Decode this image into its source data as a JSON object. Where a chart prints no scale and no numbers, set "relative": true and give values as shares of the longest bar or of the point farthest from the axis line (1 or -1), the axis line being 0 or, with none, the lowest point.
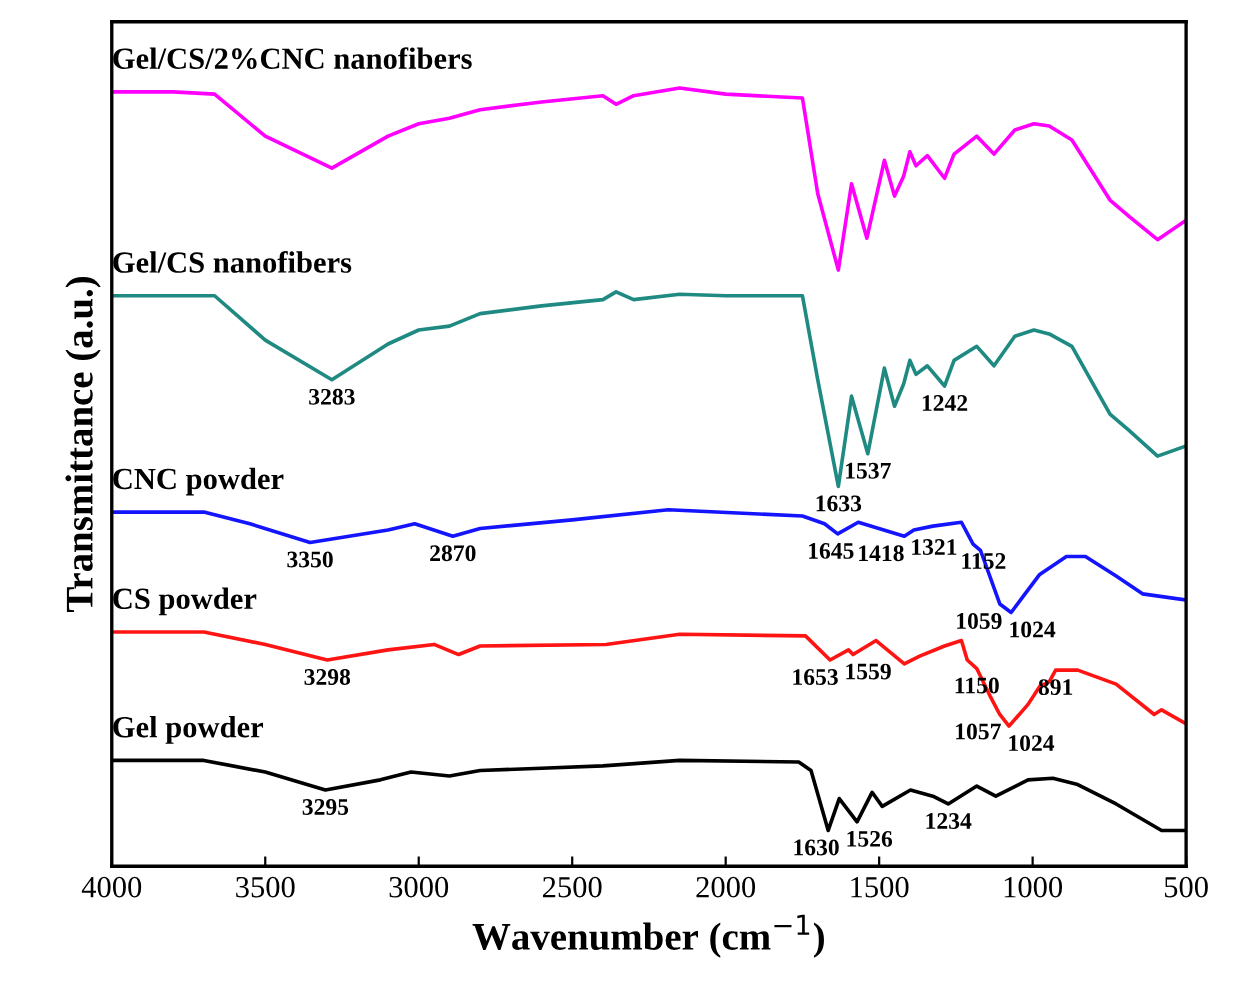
{
  "chart_data": {
    "type": "line",
    "relative": true,
    "xlabel": "Wavenumber (cm$^{−1}$)",
    "ylabel": "Transmittance (a.u.)",
    "xlim": [
      4000,
      500
    ],
    "xticks": [
      4000,
      3500,
      3000,
      2500,
      2000,
      1500,
      1000,
      500
    ],
    "grid": false,
    "legend": false,
    "series": [
      {
        "name": "Gel/CS/2%CNC nanofibers",
        "color": "#ff00ff",
        "x": [
          4000,
          3800,
          3665,
          3500,
          3283,
          3100,
          3000,
          2900,
          2800,
          2600,
          2400,
          2357,
          2300,
          2150,
          2000,
          1750,
          1700,
          1633,
          1590,
          1540,
          1483,
          1450,
          1420,
          1400,
          1380,
          1343,
          1287,
          1256,
          1182,
          1126,
          1058,
          996,
          946,
          872,
          748,
          686,
          593,
          500
        ],
        "values": [
          0.995,
          0.995,
          0.992,
          0.938,
          0.897,
          0.938,
          0.954,
          0.961,
          0.972,
          0.982,
          0.99,
          0.979,
          0.99,
          1.0,
          0.992,
          0.987,
          0.864,
          0.766,
          0.877,
          0.807,
          0.907,
          0.861,
          0.887,
          0.918,
          0.9,
          0.913,
          0.884,
          0.915,
          0.938,
          0.915,
          0.946,
          0.954,
          0.951,
          0.933,
          0.856,
          0.835,
          0.805,
          0.83
        ]
      },
      {
        "name": "Gel/CS nanofibers",
        "color": "#1f8a82",
        "x": [
          4000,
          3800,
          3665,
          3500,
          3283,
          3100,
          3000,
          2900,
          2800,
          2600,
          2400,
          2357,
          2300,
          2150,
          2000,
          1750,
          1700,
          1633,
          1590,
          1537,
          1483,
          1450,
          1420,
          1400,
          1380,
          1343,
          1287,
          1256,
          1182,
          1126,
          1058,
          996,
          946,
          872,
          748,
          686,
          593,
          500
        ],
        "values": [
          0.733,
          0.733,
          0.733,
          0.676,
          0.625,
          0.671,
          0.689,
          0.694,
          0.71,
          0.72,
          0.728,
          0.738,
          0.728,
          0.735,
          0.733,
          0.733,
          0.625,
          0.488,
          0.604,
          0.53,
          0.64,
          0.591,
          0.62,
          0.65,
          0.632,
          0.643,
          0.617,
          0.65,
          0.668,
          0.643,
          0.681,
          0.689,
          0.684,
          0.668,
          0.581,
          0.56,
          0.527,
          0.54
        ]
      },
      {
        "name": "CNC powder",
        "color": "#1414ff",
        "x": [
          4000,
          3700,
          3550,
          3354,
          3100,
          3013,
          2889,
          2800,
          2500,
          2187,
          1750,
          1678,
          1635,
          1568,
          1418,
          1387,
          1325,
          1232,
          1194,
          1170,
          1107,
          1070,
          1040,
          977,
          890,
          828,
          728,
          642,
          500
        ],
        "values": [
          0.455,
          0.455,
          0.44,
          0.416,
          0.432,
          0.44,
          0.424,
          0.434,
          0.445,
          0.458,
          0.45,
          0.44,
          0.427,
          0.442,
          0.424,
          0.432,
          0.437,
          0.442,
          0.414,
          0.406,
          0.337,
          0.326,
          0.342,
          0.375,
          0.398,
          0.398,
          0.373,
          0.35,
          0.342
        ]
      },
      {
        "name": "CS powder",
        "color": "#ff1414",
        "x": [
          4000,
          3700,
          3500,
          3298,
          3100,
          2950,
          2870,
          2800,
          2390,
          2150,
          1740,
          1660,
          1600,
          1585,
          1510,
          1418,
          1368,
          1287,
          1232,
          1213,
          1182,
          1139,
          1107,
          1077,
          1015,
          977,
          946,
          925,
          853,
          728,
          604,
          580,
          500
        ],
        "values": [
          0.301,
          0.301,
          0.285,
          0.265,
          0.278,
          0.285,
          0.272,
          0.283,
          0.285,
          0.298,
          0.296,
          0.265,
          0.278,
          0.272,
          0.29,
          0.26,
          0.27,
          0.283,
          0.29,
          0.265,
          0.254,
          0.219,
          0.195,
          0.18,
          0.208,
          0.231,
          0.237,
          0.252,
          0.252,
          0.234,
          0.195,
          0.201,
          0.183
        ]
      },
      {
        "name": "Gel powder",
        "color": "#000000",
        "x": [
          4000,
          3700,
          3500,
          3304,
          3125,
          3025,
          2900,
          2800,
          2600,
          2400,
          2150,
          1762,
          1722,
          1666,
          1630,
          1572,
          1523,
          1490,
          1398,
          1325,
          1275,
          1182,
          1120,
          1015,
          934,
          853,
          728,
          580,
          500
        ],
        "values": [
          0.136,
          0.136,
          0.121,
          0.098,
          0.111,
          0.121,
          0.116,
          0.123,
          0.126,
          0.129,
          0.136,
          0.134,
          0.123,
          0.046,
          0.087,
          0.057,
          0.095,
          0.077,
          0.098,
          0.09,
          0.08,
          0.103,
          0.09,
          0.111,
          0.113,
          0.105,
          0.08,
          0.046,
          0.046
        ]
      }
    ],
    "annotations": [
      {
        "text": "3283",
        "x": 3283,
        "y": 0.625
      },
      {
        "text": "1242",
        "x": 1287,
        "y": 0.617
      },
      {
        "text": "1633",
        "x": 1633,
        "y": 0.488
      },
      {
        "text": "1537",
        "x": 1537,
        "y": 0.53
      },
      {
        "text": "3350",
        "x": 3354,
        "y": 0.416
      },
      {
        "text": "2870",
        "x": 2889,
        "y": 0.424
      },
      {
        "text": "1645",
        "x": 1635,
        "y": 0.427
      },
      {
        "text": "1418",
        "x": 1418,
        "y": 0.424
      },
      {
        "text": "1321",
        "x": 1387,
        "y": 0.432
      },
      {
        "text": "1152",
        "x": 1194,
        "y": 0.414
      },
      {
        "text": "1059",
        "x": 1107,
        "y": 0.337
      },
      {
        "text": "1024",
        "x": 1070,
        "y": 0.326
      },
      {
        "text": "3298",
        "x": 3298,
        "y": 0.265
      },
      {
        "text": "1653",
        "x": 1660,
        "y": 0.265
      },
      {
        "text": "1559",
        "x": 1585,
        "y": 0.272
      },
      {
        "text": "1150",
        "x": 1182,
        "y": 0.254
      },
      {
        "text": "891",
        "x": 925,
        "y": 0.252
      },
      {
        "text": "1057",
        "x": 1107,
        "y": 0.195
      },
      {
        "text": "1024",
        "x": 1077,
        "y": 0.18
      },
      {
        "text": "3295",
        "x": 3304,
        "y": 0.098
      },
      {
        "text": "1630",
        "x": 1666,
        "y": 0.046
      },
      {
        "text": "1526",
        "x": 1572,
        "y": 0.057
      },
      {
        "text": "1234",
        "x": 1275,
        "y": 0.08
      }
    ]
  }
}
